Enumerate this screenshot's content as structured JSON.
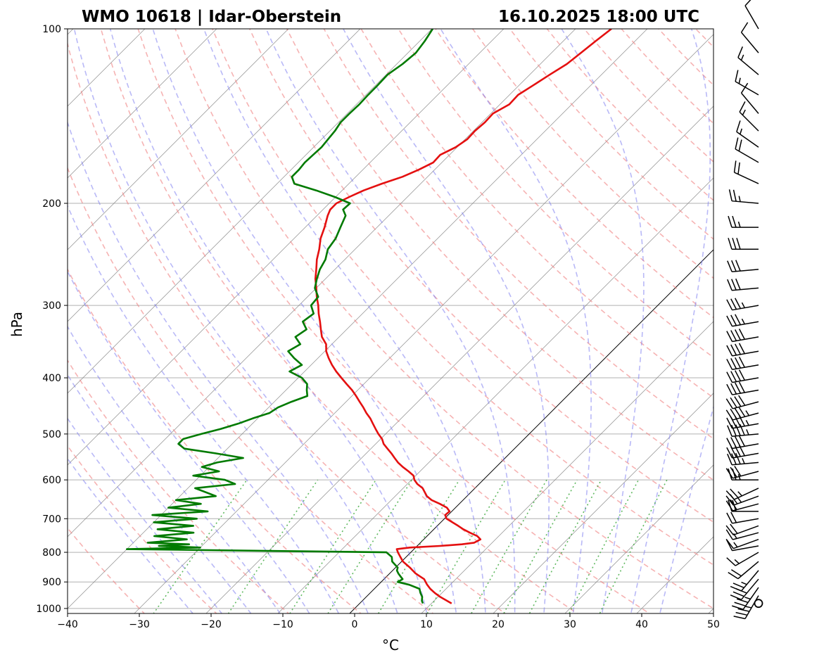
{
  "chart_data": {
    "type": "line",
    "subtype": "skew-t log-p sounding",
    "title_left": "WMO 10618 | Idar-Oberstein",
    "title_right": "16.10.2025 18:00 UTC",
    "xlabel": "°C",
    "ylabel": "hPa",
    "xlim": [
      -40,
      50
    ],
    "ylim": [
      1020,
      100
    ],
    "y_scale": "log",
    "x_ticks": [
      -40,
      -30,
      -20,
      -10,
      0,
      10,
      20,
      30,
      40,
      50
    ],
    "x_tick_labels": [
      "−40",
      "−30",
      "−20",
      "−10",
      "0",
      "10",
      "20",
      "30",
      "40",
      "50"
    ],
    "y_ticks": [
      100,
      200,
      300,
      400,
      500,
      600,
      700,
      800,
      900,
      1000
    ],
    "y_tick_labels": [
      "100",
      "200",
      "300",
      "400",
      "500",
      "600",
      "700",
      "800",
      "900",
      "1000"
    ],
    "grid": true,
    "colors": {
      "temperature": "#e41010",
      "dewpoint": "#007a00",
      "dry_adiabats": "#f08080",
      "moist_adiabats": "#8080f0",
      "mixing_ratio": "#3aa83a",
      "isotherms": "#808080",
      "grid": "#b0b0b0"
    },
    "series": [
      {
        "name": "temperature",
        "p": [
          980,
          970,
          955,
          940,
          925,
          910,
          900,
          890,
          880,
          870,
          860,
          850,
          840,
          830,
          815,
          800,
          790,
          785,
          780,
          775,
          770,
          760,
          750,
          740,
          730,
          720,
          710,
          700,
          690,
          680,
          670,
          660,
          650,
          640,
          620,
          610,
          600,
          590,
          580,
          570,
          560,
          550,
          540,
          530,
          520,
          510,
          500,
          490,
          480,
          470,
          460,
          450,
          440,
          430,
          420,
          410,
          400,
          390,
          380,
          370,
          360,
          350,
          340,
          330,
          320,
          310,
          300,
          290,
          280,
          270,
          260,
          250,
          240,
          230,
          220,
          210,
          205,
          200,
          195,
          190,
          185,
          180,
          175,
          170,
          165,
          160,
          155,
          150,
          145,
          140,
          135,
          130,
          125,
          120,
          115,
          110,
          105,
          100
        ],
        "t": [
          12.8,
          11.8,
          10.3,
          9.0,
          7.8,
          6.8,
          6.2,
          5.6,
          4.6,
          3.6,
          2.8,
          2.0,
          1.1,
          0.2,
          -0.8,
          -1.8,
          -2.4,
          -0.8,
          3.2,
          6.0,
          7.5,
          7.9,
          7.0,
          5.5,
          4.1,
          2.9,
          1.6,
          0.3,
          -0.4,
          -0.3,
          -1.2,
          -2.7,
          -4.4,
          -5.6,
          -7.3,
          -8.6,
          -9.6,
          -10.3,
          -11.6,
          -13.0,
          -14.3,
          -15.4,
          -16.5,
          -17.7,
          -18.9,
          -19.8,
          -21.0,
          -22.1,
          -23.2,
          -24.3,
          -25.6,
          -26.8,
          -28.1,
          -29.4,
          -30.8,
          -32.4,
          -34.0,
          -35.6,
          -37.1,
          -38.5,
          -39.8,
          -40.8,
          -42.4,
          -43.6,
          -44.8,
          -46.1,
          -47.3,
          -48.7,
          -50.0,
          -51.4,
          -52.6,
          -53.9,
          -55.0,
          -56.3,
          -57.3,
          -58.5,
          -59.0,
          -59.0,
          -58.1,
          -57.0,
          -55.4,
          -53.5,
          -52.2,
          -51.2,
          -51.3,
          -50.2,
          -49.7,
          -49.8,
          -49.6,
          -49.7,
          -48.7,
          -48.8,
          -48.0,
          -47.2,
          -46.3,
          -45.9,
          -45.5,
          -45.0
        ]
      },
      {
        "name": "dewpoint",
        "p": [
          980,
          970,
          955,
          940,
          925,
          910,
          900,
          890,
          880,
          870,
          860,
          850,
          840,
          830,
          815,
          800,
          790,
          785,
          780,
          775,
          770,
          760,
          750,
          740,
          730,
          720,
          710,
          700,
          690,
          680,
          670,
          660,
          650,
          640,
          620,
          610,
          600,
          590,
          580,
          570,
          560,
          550,
          540,
          530,
          520,
          510,
          500,
          490,
          480,
          470,
          460,
          450,
          440,
          430,
          420,
          410,
          400,
          390,
          380,
          370,
          360,
          350,
          340,
          330,
          320,
          310,
          300,
          290,
          280,
          270,
          260,
          250,
          240,
          230,
          220,
          210,
          205,
          200,
          195,
          190,
          185,
          180,
          175,
          170,
          165,
          160,
          155,
          150,
          145,
          140,
          135,
          130,
          125,
          120,
          115,
          110,
          105,
          100
        ],
        "td": [
          8.8,
          8.3,
          7.8,
          7.0,
          6.3,
          4.3,
          2.3,
          2.6,
          1.9,
          1.2,
          0.6,
          0.3,
          -0.5,
          -1.3,
          -2.0,
          -3.4,
          -40.0,
          -30.0,
          -36.0,
          -32.0,
          -38.0,
          -33.0,
          -38.0,
          -33.0,
          -38.5,
          -34.0,
          -40.0,
          -34.5,
          -41.2,
          -34.0,
          -40.0,
          -36.0,
          -40.0,
          -35.0,
          -39.0,
          -34.0,
          -36.0,
          -41.0,
          -38.0,
          -41.0,
          -39.5,
          -36.5,
          -41.0,
          -46.0,
          -47.5,
          -47.5,
          -45.7,
          -43.7,
          -42.0,
          -40.7,
          -39.1,
          -38.7,
          -37.6,
          -36.2,
          -37.1,
          -37.9,
          -39.5,
          -42.1,
          -41.3,
          -43.3,
          -45.1,
          -44.4,
          -46.1,
          -45.6,
          -47.2,
          -46.8,
          -48.3,
          -48.5,
          -50.2,
          -51.2,
          -52.1,
          -52.7,
          -53.8,
          -54.2,
          -55.1,
          -56.0,
          -57.2,
          -57.1,
          -60.1,
          -63.6,
          -67.6,
          -68.9,
          -68.9,
          -69.1,
          -69.0,
          -68.9,
          -69.1,
          -69.3,
          -69.7,
          -69.7,
          -69.6,
          -69.7,
          -69.7,
          -69.8,
          -69.2,
          -68.9,
          -69.3,
          -69.9
        ]
      }
    ],
    "wind_barbs": {
      "calm_surface": true,
      "p": [
        980,
        950,
        920,
        890,
        860,
        830,
        800,
        780,
        760,
        740,
        720,
        700,
        680,
        660,
        640,
        620,
        600,
        580,
        560,
        540,
        520,
        500,
        480,
        460,
        440,
        420,
        400,
        380,
        360,
        340,
        320,
        300,
        280,
        260,
        240,
        220,
        200,
        185,
        170,
        160,
        150,
        140,
        130,
        120,
        110,
        100
      ],
      "dir": [
        0,
        210,
        215,
        220,
        220,
        230,
        240,
        260,
        250,
        255,
        250,
        260,
        270,
        255,
        250,
        245,
        270,
        255,
        265,
        260,
        260,
        265,
        260,
        255,
        255,
        260,
        260,
        260,
        260,
        260,
        260,
        260,
        265,
        265,
        270,
        270,
        275,
        295,
        300,
        305,
        315,
        320,
        300,
        310,
        320,
        330
      ],
      "speed_kt": [
        0,
        35,
        35,
        30,
        25,
        20,
        15,
        10,
        15,
        15,
        20,
        20,
        20,
        20,
        25,
        25,
        25,
        30,
        35,
        40,
        40,
        45,
        45,
        45,
        40,
        40,
        40,
        40,
        40,
        40,
        35,
        35,
        30,
        30,
        30,
        25,
        25,
        20,
        20,
        15,
        15,
        10,
        15,
        15,
        10,
        10
      ]
    }
  }
}
